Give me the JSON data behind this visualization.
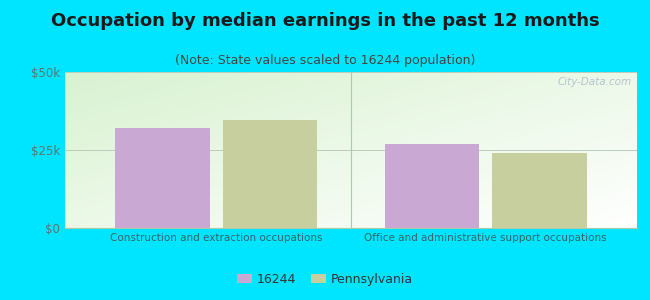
{
  "title": "Occupation by median earnings in the past 12 months",
  "subtitle": "(Note: State values scaled to 16244 population)",
  "categories": [
    "Construction and extraction occupations",
    "Office and administrative support occupations"
  ],
  "values_16244": [
    32000,
    27000
  ],
  "values_pennsylvania": [
    34500,
    24000
  ],
  "ylim": [
    0,
    50000
  ],
  "yticks": [
    0,
    25000,
    50000
  ],
  "ytick_labels": [
    "$0",
    "$25k",
    "$50k"
  ],
  "color_16244": "#c9a8d4",
  "color_pennsylvania": "#c8cf9e",
  "background_outer": "#00e5ff",
  "legend_label_1": "16244",
  "legend_label_2": "Pennsylvania",
  "bar_width": 0.28,
  "title_fontsize": 13,
  "subtitle_fontsize": 9,
  "watermark": "City-Data.com"
}
